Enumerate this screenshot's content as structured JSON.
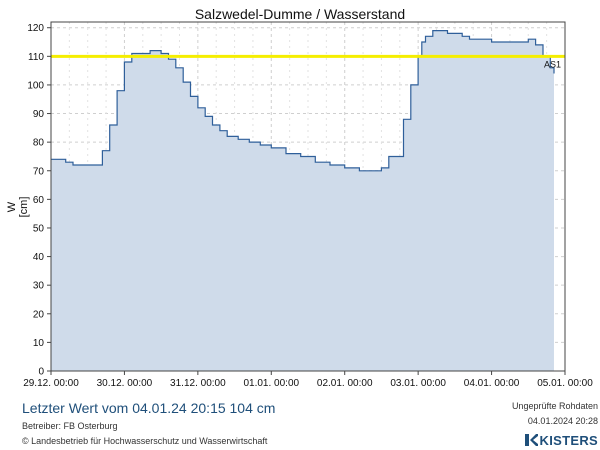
{
  "chart_data": {
    "type": "area",
    "title": "Salzwedel-Dumme / Wasserstand",
    "ylabel": "W [cm]",
    "ylim": [
      0,
      122
    ],
    "yticks": [
      0,
      10,
      20,
      30,
      40,
      50,
      60,
      70,
      80,
      90,
      100,
      110,
      120
    ],
    "x_tick_labels": [
      "29.12. 00:00",
      "30.12. 00:00",
      "31.12. 00:00",
      "01.01. 00:00",
      "02.01. 00:00",
      "03.01. 00:00",
      "04.01. 00:00",
      "05.01. 00:00"
    ],
    "grid": true,
    "threshold": {
      "label": "AS1",
      "value": 110,
      "color": "#f5ee00"
    },
    "series_color": "#2f5f9a",
    "fill_color": "#cfdbea",
    "x_days": [
      0,
      0.2,
      0.3,
      0.6,
      0.7,
      0.8,
      0.9,
      1.0,
      1.1,
      1.2,
      1.35,
      1.5,
      1.6,
      1.7,
      1.8,
      1.9,
      2.0,
      2.1,
      2.2,
      2.3,
      2.4,
      2.55,
      2.7,
      2.85,
      3.0,
      3.2,
      3.4,
      3.6,
      3.8,
      4.0,
      4.2,
      4.3,
      4.5,
      4.6,
      4.8,
      4.9,
      5.0,
      5.05,
      5.1,
      5.2,
      5.3,
      5.4,
      5.6,
      5.7,
      5.8,
      6.0,
      6.2,
      6.3,
      6.5,
      6.6,
      6.7,
      6.8,
      6.85
    ],
    "values": [
      74,
      73,
      72,
      72,
      77,
      86,
      98,
      108,
      111,
      111,
      112,
      111,
      109,
      106,
      101,
      96,
      92,
      89,
      86,
      84,
      82,
      81,
      80,
      79,
      78,
      76,
      75,
      73,
      72,
      71,
      70,
      70,
      71,
      75,
      88,
      100,
      110,
      115,
      117,
      119,
      119,
      118,
      117,
      116,
      116,
      115,
      115,
      115,
      116,
      114,
      110,
      106,
      104
    ]
  },
  "footer": {
    "last_value": "Letzter Wert vom 04.01.24 20:15  104 cm",
    "operator": "Betreiber: FB Osterburg",
    "copyright": "© Landesbetrieb für Hochwasserschutz und Wasserwirtschaft",
    "raw_note": "Ungeprüfte Rohdaten",
    "raw_date": "04.01.2024 20:28",
    "logo": "KISTERS",
    "logo_icon": "kisters-k-icon"
  }
}
